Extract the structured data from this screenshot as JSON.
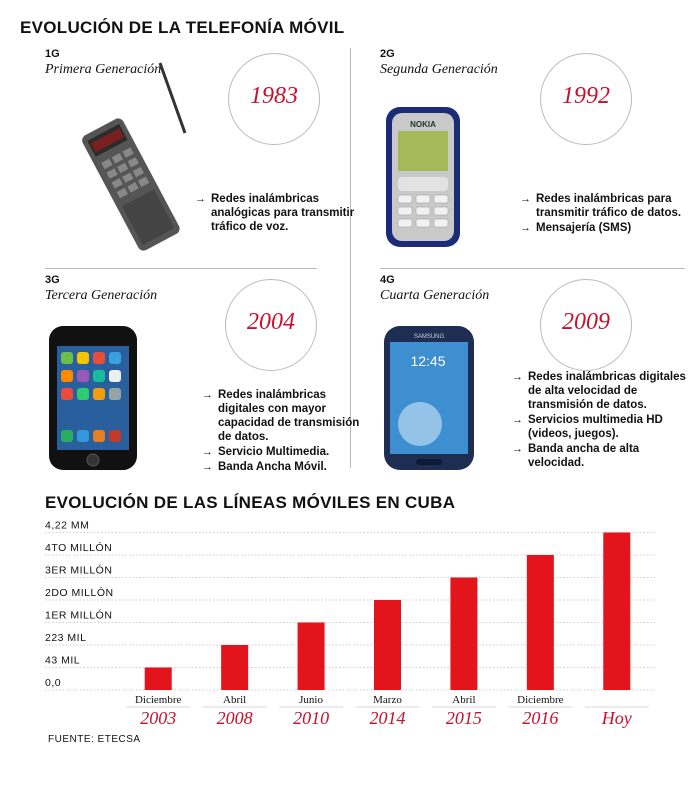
{
  "header": {
    "title": "EVOLUCIÓN DE LA TELEFONÍA MÓVIL"
  },
  "generations": [
    {
      "code": "1G",
      "name": "Primera Generación",
      "year": "1983",
      "features": [
        "Redes inalámbricas analógicas para transmitir tráfico de voz."
      ]
    },
    {
      "code": "2G",
      "name": "Segunda Generación",
      "year": "1992",
      "features": [
        "Redes inalámbricas para transmitir tráfico de datos.",
        "Mensajería (SMS)"
      ]
    },
    {
      "code": "3G",
      "name": "Tercera Generación",
      "year": "2004",
      "features": [
        "Redes inalámbricas digitales con mayor capacidad de transmisión de datos.",
        "Servicio Multimedia.",
        "Banda Ancha Móvil."
      ]
    },
    {
      "code": "4G",
      "name": "Cuarta Generación",
      "year": "2009",
      "features": [
        "Redes inalámbricas digitales de alta velocidad de transmisión de datos.",
        "Servicios multimedia HD (videos, juegos).",
        "Banda ancha de alta velocidad."
      ]
    }
  ],
  "phone_screen_texts": {
    "nokia": "NOKIA",
    "samsung": "SAMSUNG",
    "clock": "12:45"
  },
  "chart_title": "EVOLUCIÓN DE LAS LÍNEAS MÓVILES EN CUBA",
  "chart_data": {
    "type": "bar",
    "title": "EVOLUCIÓN DE LAS LÍNEAS MÓVILES EN CUBA",
    "y_ticks": [
      "0,0",
      "43 MIL",
      "223 MIL",
      "1ER MILLÓN",
      "2DO MILLÓN",
      "3ER MILLÓN",
      "4TO MILLÓN",
      "4,22 MM"
    ],
    "categories": [
      {
        "month": "Diciembre",
        "year": "2003"
      },
      {
        "month": "Abril",
        "year": "2008"
      },
      {
        "month": "Junio",
        "year": "2010"
      },
      {
        "month": "Marzo",
        "year": "2014"
      },
      {
        "month": "Abril",
        "year": "2015"
      },
      {
        "month": "Diciembre",
        "year": "2016"
      },
      {
        "month": "",
        "year": "Hoy"
      }
    ],
    "values_in_tick_units": [
      1,
      2,
      3,
      4,
      5,
      6,
      7
    ],
    "bar_color": "#e3141b",
    "grid": true,
    "legend": "none"
  },
  "source": "FUENTE: ETECSA",
  "colors": {
    "accent": "#c8102e",
    "bar": "#e3141b"
  }
}
